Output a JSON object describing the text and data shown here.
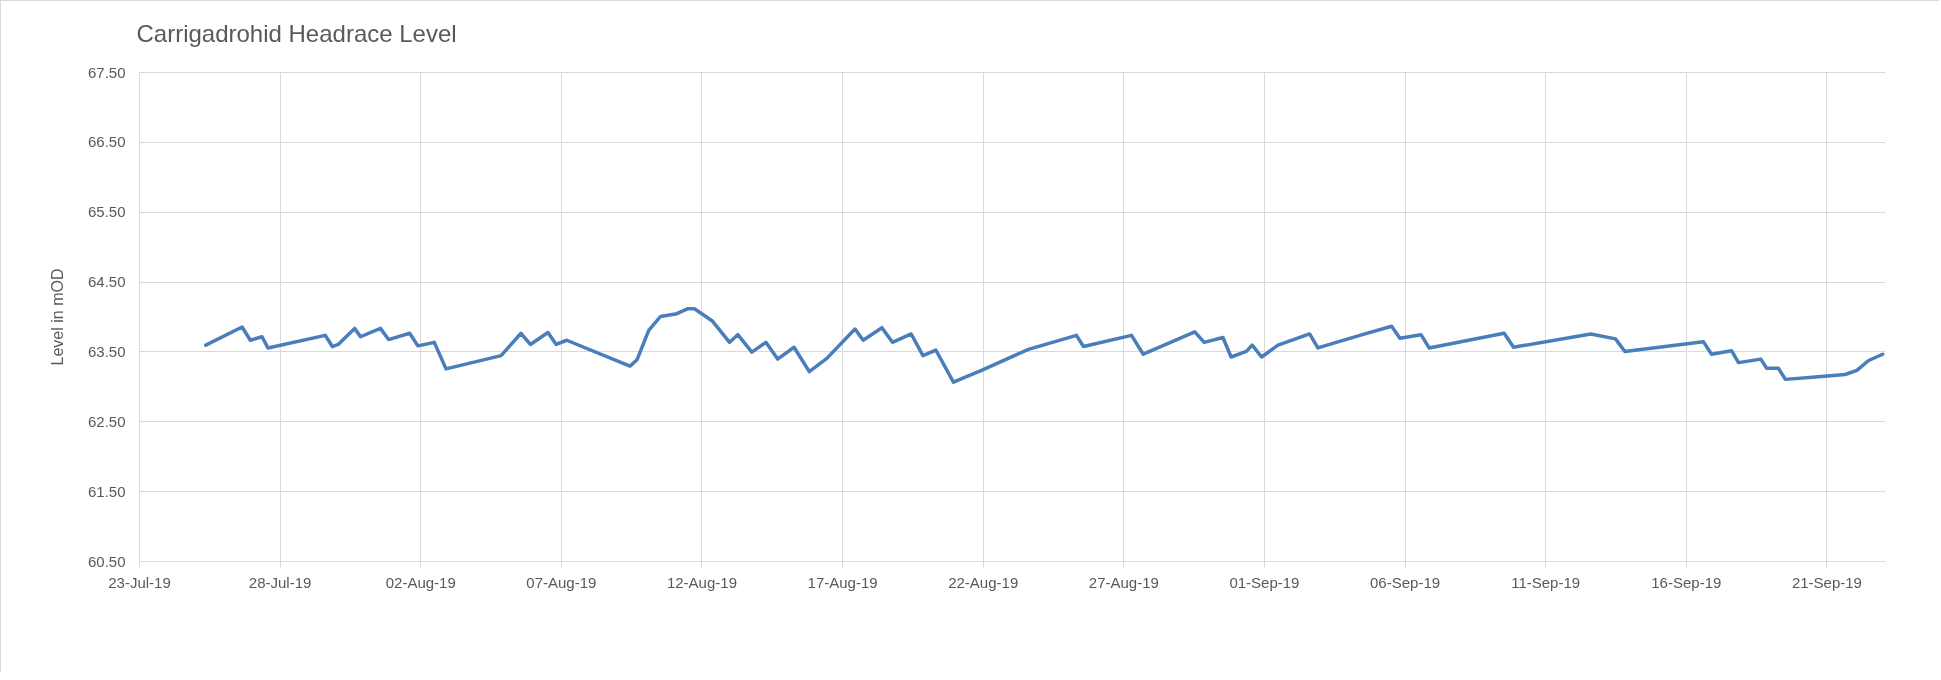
{
  "chart_data": {
    "type": "line",
    "title": "Carrigadrohid Headrace Level",
    "ylabel": "Level in mOD",
    "x": [
      "--07-25T09:00",
      "--07-26T16:00",
      "--07-26T23:00",
      "--07-27T09:00",
      "--07-27T14:00",
      "--07-29T15:00",
      "--07-29T21:00",
      "--07-30T02:00",
      "--07-30T16:00",
      "--07-30T21:00",
      "--07-31T14:00",
      "--07-31T21:00",
      "--08-01T15:00",
      "--08-01T22:00",
      "--08-02T12:00",
      "--08-02T22:00",
      "--08-04T21:00",
      "--08-05T14:00",
      "--08-05T22:00",
      "--08-06T13:00",
      "--08-06T20:00",
      "--08-07T05:00",
      "--08-09T11:00",
      "--08-09T17:00",
      "--08-10T03:00",
      "--08-10T13:00",
      "--08-11T03:00",
      "--08-11T12:00",
      "--08-11T18:00",
      "--08-12T09:00",
      "--08-13T00:00",
      "--08-13T07:00",
      "--08-13T19:00",
      "--08-14T07:00",
      "--08-14T17:00",
      "--08-15T07:00",
      "--08-15T20:00",
      "--08-16T11:00",
      "--08-17T11:00",
      "--08-17T18:00",
      "--08-18T10:00",
      "--08-18T19:00",
      "--08-19T11:00",
      "--08-19T21:00",
      "--08-20T08:00",
      "--08-20T23:00",
      "--08-21T23:00",
      "--08-23T15:00",
      "--08-25T08:00",
      "--08-25T14:00",
      "--08-27T07:00",
      "--08-27T17:00",
      "--08-29T13:00",
      "--08-29T21:00",
      "--08-30T13:00",
      "--08-30T20:00",
      "--08-31T09:00",
      "--08-31T14:00",
      "--08-31T22:00",
      "--09-01T12:00",
      "--09-02T15:00",
      "--09-02T22:00",
      "--09-04T12:00",
      "--09-05T13:00",
      "--09-05T20:00",
      "--09-06T14:00",
      "--09-06T21:00",
      "--09-09T13:00",
      "--09-09T21:00",
      "--09-12T15:00",
      "--09-13T12:00",
      "--09-13T20:00",
      "--09-16T15:00",
      "--09-16T22:00",
      "--09-17T15:00",
      "--09-17T21:00",
      "--09-18T16:00",
      "--09-18T21:00",
      "--09-19T07:00",
      "--09-19T13:00",
      "--09-20T12:00",
      "--09-21T16:00",
      "--09-22T02:00",
      "--09-22T12:00",
      "--09-23T00:00"
    ],
    "series": [
      {
        "color": "#4a7ebb",
        "values": [
          63.59,
          63.85,
          63.66,
          63.71,
          63.55,
          63.73,
          63.57,
          63.6,
          63.83,
          63.71,
          63.83,
          63.67,
          63.76,
          63.58,
          63.63,
          63.25,
          63.44,
          63.76,
          63.6,
          63.77,
          63.6,
          63.66,
          63.29,
          63.38,
          63.8,
          64.0,
          64.04,
          64.11,
          64.11,
          63.94,
          63.63,
          63.74,
          63.49,
          63.63,
          63.39,
          63.56,
          63.21,
          63.4,
          63.82,
          63.66,
          63.84,
          63.63,
          63.75,
          63.44,
          63.52,
          63.06,
          63.23,
          63.53,
          63.73,
          63.57,
          63.73,
          63.46,
          63.78,
          63.63,
          63.7,
          63.42,
          63.5,
          63.59,
          63.42,
          63.59,
          63.75,
          63.55,
          63.74,
          63.86,
          63.69,
          63.74,
          63.55,
          63.76,
          63.56,
          63.75,
          63.68,
          63.5,
          63.64,
          63.46,
          63.51,
          63.34,
          63.39,
          63.26,
          63.26,
          63.1,
          63.13,
          63.17,
          63.23,
          63.37,
          63.46
        ]
      }
    ],
    "xlim": [
      "--07-23",
      "--09-23T02:00"
    ],
    "xticks": [
      {
        "value": "--07-23",
        "label": "23-Jul-19"
      },
      {
        "value": "--07-28",
        "label": "28-Jul-19"
      },
      {
        "value": "--08-02",
        "label": "02-Aug-19"
      },
      {
        "value": "--08-07",
        "label": "07-Aug-19"
      },
      {
        "value": "--08-12",
        "label": "12-Aug-19"
      },
      {
        "value": "--08-17",
        "label": "17-Aug-19"
      },
      {
        "value": "--08-22",
        "label": "22-Aug-19"
      },
      {
        "value": "--08-27",
        "label": "27-Aug-19"
      },
      {
        "value": "--09-01",
        "label": "01-Sep-19"
      },
      {
        "value": "--09-06",
        "label": "06-Sep-19"
      },
      {
        "value": "--09-11",
        "label": "11-Sep-19"
      },
      {
        "value": "--09-16",
        "label": "16-Sep-19"
      },
      {
        "value": "--09-21",
        "label": "21-Sep-19"
      }
    ],
    "ylim": [
      60.5,
      67.5
    ],
    "yticks": [
      {
        "value": 60.5,
        "label": "60.50"
      },
      {
        "value": 61.5,
        "label": "61.50"
      },
      {
        "value": 62.5,
        "label": "62.50"
      },
      {
        "value": 63.5,
        "label": "63.50"
      },
      {
        "value": 64.5,
        "label": "64.50"
      },
      {
        "value": 65.5,
        "label": "65.50"
      },
      {
        "value": 66.5,
        "label": "66.50"
      },
      {
        "value": 67.5,
        "label": "67.50"
      }
    ],
    "grid": true,
    "marker": "none",
    "line_style": "solid"
  }
}
